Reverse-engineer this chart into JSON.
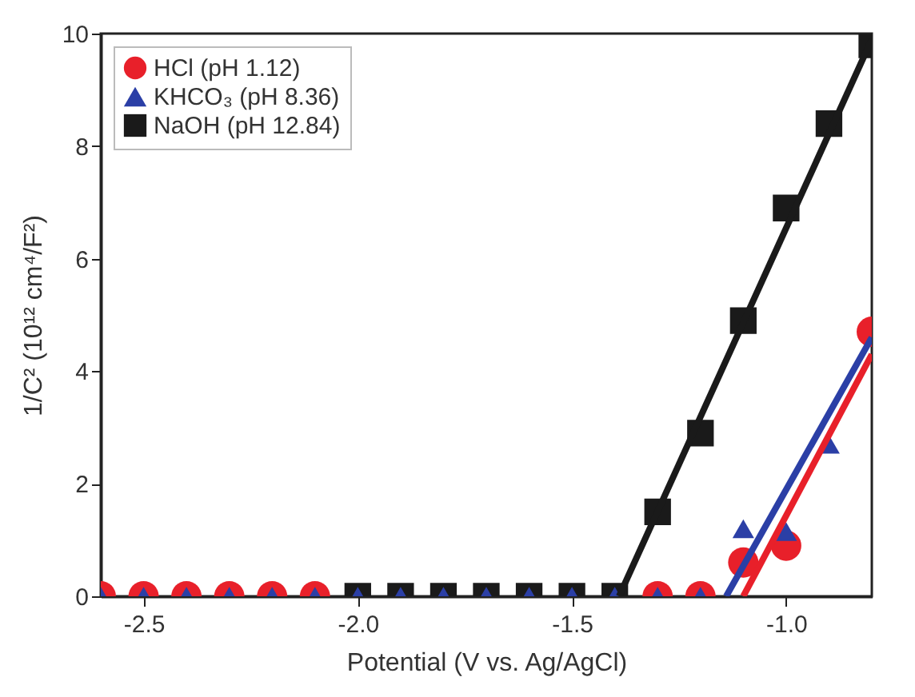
{
  "chart_data": {
    "type": "scatter",
    "xlabel": "Potential (V vs. Ag/AgCl)",
    "ylabel": "1/C² (10¹² cm⁴/F²)",
    "x": [
      -2.6,
      -2.5,
      -2.4,
      -2.3,
      -2.2,
      -2.1,
      -2.0,
      -1.9,
      -1.8,
      -1.7,
      -1.6,
      -1.5,
      -1.4,
      -1.3,
      -1.2,
      -1.1,
      -1.0,
      -0.9,
      -0.8
    ],
    "xlim": [
      -2.6,
      -0.8
    ],
    "ylim": [
      0,
      10
    ],
    "xticks": [
      {
        "value": -2.5,
        "label": "-2.5"
      },
      {
        "value": -2.0,
        "label": "-2.0"
      },
      {
        "value": -1.5,
        "label": "-1.5"
      },
      {
        "value": -1.0,
        "label": "-1.0"
      }
    ],
    "yticks": [
      0,
      2,
      4,
      6,
      8,
      10
    ],
    "grid": false,
    "legend": "top left",
    "series": [
      {
        "name": "HCl (pH 1.12)",
        "color": "#e8202a",
        "marker": "circle",
        "values": [
          0,
          0,
          0,
          0,
          0,
          0,
          null,
          null,
          null,
          null,
          null,
          null,
          null,
          0,
          0,
          0.6,
          0.9,
          null,
          4.7
        ]
      },
      {
        "name": "KHCO₃ (pH 8.36)",
        "color": "#2b3fa6",
        "marker": "triangle",
        "values": [
          0,
          0,
          0,
          0,
          0,
          0,
          0,
          0,
          0,
          0,
          0,
          0,
          0,
          0,
          0,
          1.2,
          1.15,
          2.7,
          null
        ]
      },
      {
        "name": "NaOH (pH 12.84)",
        "color": "#1a1a1a",
        "marker": "square",
        "values": [
          null,
          null,
          null,
          null,
          null,
          null,
          0,
          0,
          0,
          0,
          0,
          0,
          0,
          1.5,
          2.9,
          4.9,
          6.9,
          8.4,
          9.8
        ]
      },
      {
        "type": "line",
        "color": "#e8202a",
        "x": [
          -1.1,
          -0.8
        ],
        "values": [
          0,
          4.3
        ]
      },
      {
        "type": "line",
        "color": "#2b3fa6",
        "x": [
          -1.14,
          -0.8
        ],
        "values": [
          0,
          4.6
        ]
      },
      {
        "type": "line",
        "color": "#1a1a1a",
        "x": [
          -1.39,
          -0.8
        ],
        "values": [
          0,
          9.9
        ]
      }
    ]
  }
}
